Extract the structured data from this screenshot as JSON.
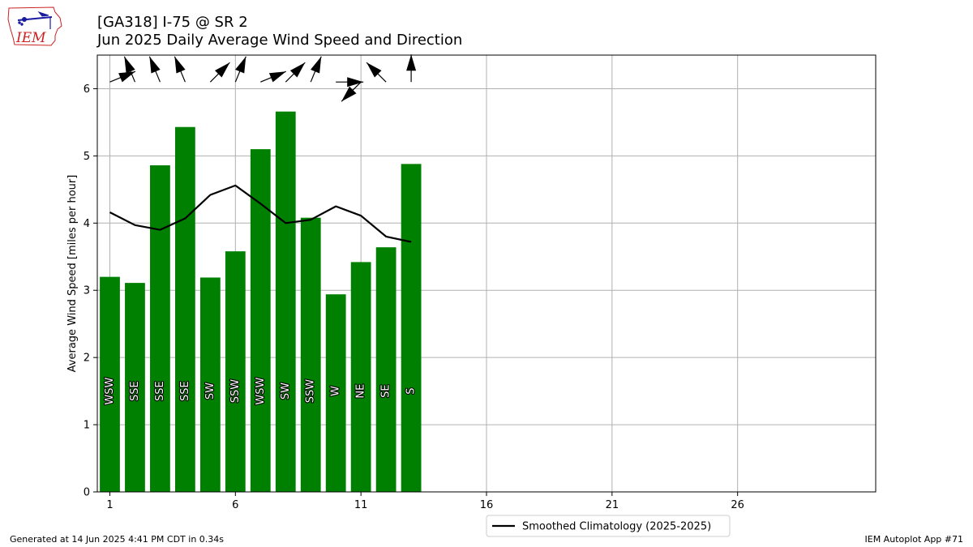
{
  "header": {
    "title_line1": "[GA318] I-75 @ SR 2",
    "title_line2": "Jun 2025 Daily Average Wind Speed and Direction"
  },
  "logo": {
    "text": "IEM"
  },
  "footer": {
    "left": "Generated at 14 Jun 2025 4:41 PM CDT in 0.34s",
    "right": "IEM Autoplot App #71"
  },
  "colors": {
    "bar": "#008000",
    "line": "#000000",
    "grid": "#b0b0b0",
    "logo": "#cc2222",
    "logo_icon": "#1a1aa0"
  },
  "chart_data": {
    "type": "bar",
    "title": "[GA318] I-75 @ SR 2\nJun 2025 Daily Average Wind Speed and Direction",
    "xlabel": "",
    "ylabel": "Average Wind Speed [miles per hour]",
    "xlim": [
      0.5,
      31.5
    ],
    "ylim": [
      0,
      6.5
    ],
    "x_ticks": [
      1,
      6,
      11,
      16,
      21,
      26
    ],
    "y_ticks": [
      0,
      1,
      2,
      3,
      4,
      5,
      6
    ],
    "grid": true,
    "legend_position": "below plot, center",
    "days": [
      1,
      2,
      3,
      4,
      5,
      6,
      7,
      8,
      9,
      10,
      11,
      12,
      13
    ],
    "series": [
      {
        "name": "",
        "type": "bar",
        "values": [
          3.2,
          3.11,
          4.86,
          5.43,
          3.19,
          3.58,
          5.1,
          5.66,
          4.08,
          2.94,
          3.42,
          3.64,
          4.88
        ]
      },
      {
        "name": "Smoothed Climatology (2025-2025)",
        "type": "line",
        "values": [
          4.16,
          3.97,
          3.9,
          4.07,
          4.42,
          4.56,
          4.29,
          4.0,
          4.05,
          4.25,
          4.11,
          3.8,
          3.72
        ]
      }
    ],
    "direction_labels": [
      "WSW",
      "SSE",
      "SSE",
      "SSE",
      "SW",
      "SSW",
      "WSW",
      "SW",
      "SSW",
      "W",
      "NE",
      "SE",
      "S"
    ],
    "wind_direction_degrees": [
      247.5,
      157.5,
      157.5,
      157.5,
      225,
      202.5,
      247.5,
      225,
      202.5,
      270,
      45,
      135,
      180
    ]
  }
}
